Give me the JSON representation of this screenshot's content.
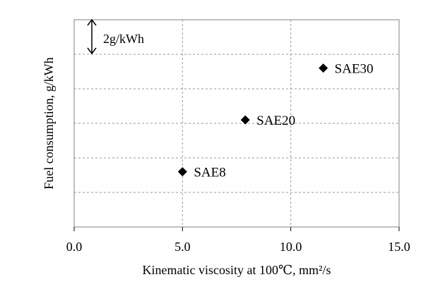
{
  "chart_data": {
    "type": "scatter",
    "xlabel": "Kinematic viscosity at 100℃, mm²/s",
    "ylabel": "Fuel consumption, g/kWh",
    "xlim": [
      0,
      15
    ],
    "x_ticks": [
      0,
      5,
      10,
      15
    ],
    "x_tick_labels": [
      "0.0",
      "5.0",
      "10.0",
      "15.0"
    ],
    "y_tick_labels_shown": false,
    "grid": true,
    "grid_style": "dashed",
    "scale_bar": {
      "label": "2g/kWh",
      "value": 2
    },
    "ylim": [
      0,
      12
    ],
    "y_gridlines": [
      2,
      4,
      6,
      8,
      10
    ],
    "marker": "diamond",
    "marker_color": "#000000",
    "points": [
      {
        "label": "SAE8",
        "x": 5.0,
        "y": 3.2
      },
      {
        "label": "SAE20",
        "x": 7.9,
        "y": 6.2
      },
      {
        "label": "SAE30",
        "x": 11.5,
        "y": 9.2
      }
    ]
  }
}
